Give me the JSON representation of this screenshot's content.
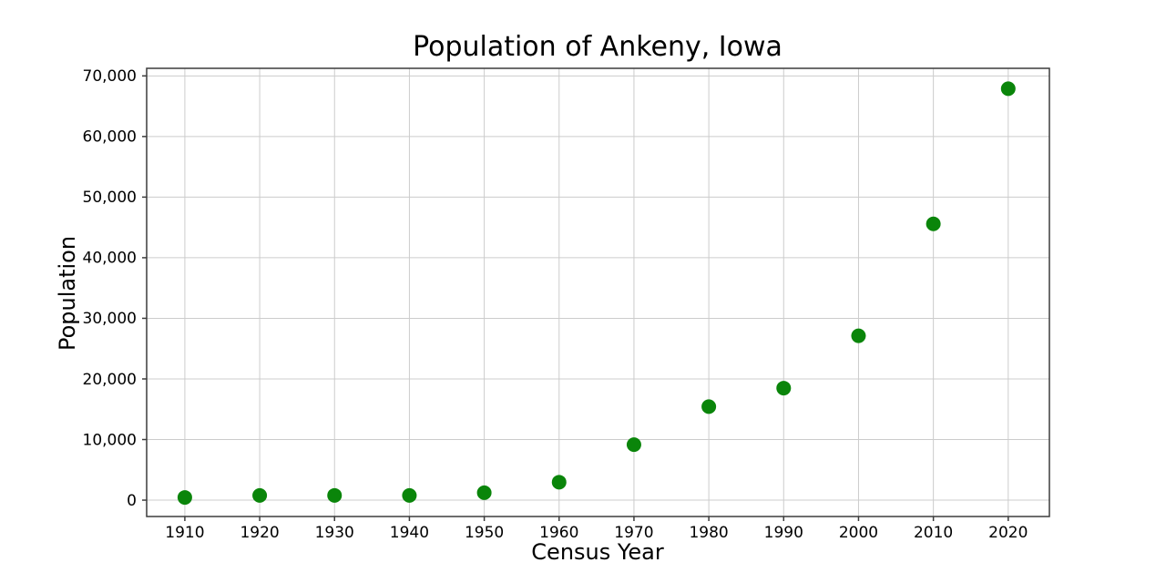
{
  "title": "Population of Ankeny, Iowa",
  "chart_data": {
    "type": "scatter",
    "title": "Population of Ankeny, Iowa",
    "xlabel": "Census Year",
    "ylabel": "Population",
    "x": [
      1910,
      1920,
      1930,
      1940,
      1950,
      1960,
      1970,
      1980,
      1990,
      2000,
      2010,
      2020
    ],
    "y": [
      445,
      779,
      784,
      779,
      1229,
      2964,
      9151,
      15429,
      18482,
      27117,
      45582,
      67887
    ],
    "x_ticks": [
      1910,
      1920,
      1930,
      1940,
      1950,
      1960,
      1970,
      1980,
      1990,
      2000,
      2010,
      2020
    ],
    "y_ticks": [
      0,
      10000,
      20000,
      30000,
      40000,
      50000,
      60000,
      70000
    ],
    "xlim": [
      1904.9,
      2025.5
    ],
    "ylim": [
      -2700,
      71250
    ],
    "grid": true,
    "legend_position": "none",
    "marker": "circle",
    "marker_radius_px": 8,
    "colors": {
      "marker": "#0a850a",
      "grid": "#cccccc",
      "spine": "#3c3c3c",
      "tick": "#3c3c3c",
      "background": "#ffffff",
      "text": "#000000"
    }
  }
}
